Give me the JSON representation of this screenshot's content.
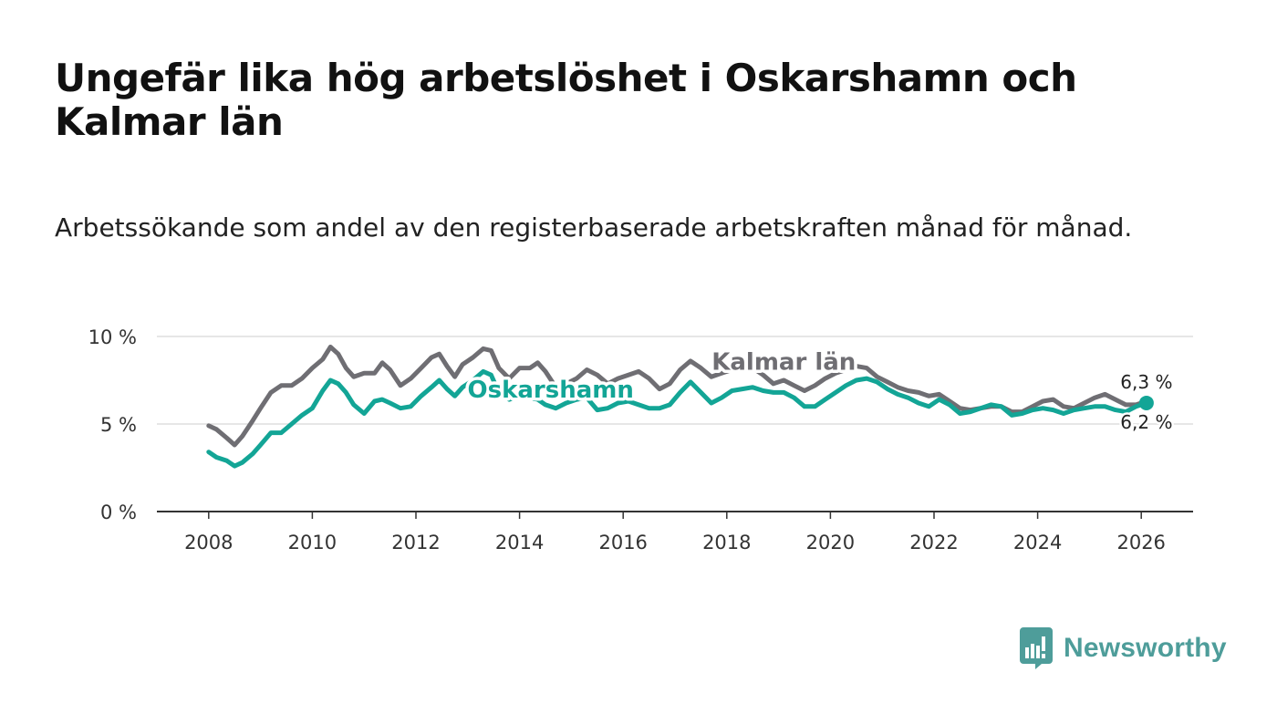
{
  "title": "Ungefär lika hög arbetslöshet i Oskarshamn och Kalmar län",
  "subtitle": "Arbetssökande som andel av den registerbaserade arbetskraften månad för månad.",
  "brand": {
    "name": "Newsworthy",
    "color": "#4e9d9a"
  },
  "chart_data": {
    "type": "line",
    "title": "Ungefär lika hög arbetslöshet i Oskarshamn och Kalmar län",
    "xlabel": "",
    "ylabel": "",
    "xlim": [
      2007.0,
      2027.0
    ],
    "ylim": [
      0,
      10
    ],
    "x_ticks": [
      2008,
      2010,
      2012,
      2014,
      2016,
      2018,
      2020,
      2022,
      2024,
      2026
    ],
    "x_tick_labels": [
      "2008",
      "2010",
      "2012",
      "2014",
      "2016",
      "2018",
      "2020",
      "2022",
      "2024",
      "2026"
    ],
    "y_ticks": [
      0,
      5,
      10
    ],
    "y_tick_labels": [
      "0 %",
      "5 %",
      "10 %"
    ],
    "grid": true,
    "series": [
      {
        "name": "Kalmar län",
        "color": "#6f6e73",
        "end_label": "6,3 %",
        "points": [
          [
            2008.0,
            4.9
          ],
          [
            2008.15,
            4.7
          ],
          [
            2008.35,
            4.2
          ],
          [
            2008.5,
            3.8
          ],
          [
            2008.65,
            4.3
          ],
          [
            2008.85,
            5.2
          ],
          [
            2009.0,
            5.9
          ],
          [
            2009.2,
            6.8
          ],
          [
            2009.4,
            7.2
          ],
          [
            2009.6,
            7.2
          ],
          [
            2009.8,
            7.6
          ],
          [
            2010.0,
            8.2
          ],
          [
            2010.2,
            8.7
          ],
          [
            2010.35,
            9.4
          ],
          [
            2010.5,
            9.0
          ],
          [
            2010.65,
            8.2
          ],
          [
            2010.8,
            7.7
          ],
          [
            2011.0,
            7.9
          ],
          [
            2011.2,
            7.9
          ],
          [
            2011.35,
            8.5
          ],
          [
            2011.5,
            8.1
          ],
          [
            2011.7,
            7.2
          ],
          [
            2011.9,
            7.6
          ],
          [
            2012.1,
            8.2
          ],
          [
            2012.3,
            8.8
          ],
          [
            2012.45,
            9.0
          ],
          [
            2012.6,
            8.3
          ],
          [
            2012.75,
            7.7
          ],
          [
            2012.9,
            8.4
          ],
          [
            2013.1,
            8.8
          ],
          [
            2013.3,
            9.3
          ],
          [
            2013.45,
            9.2
          ],
          [
            2013.6,
            8.2
          ],
          [
            2013.8,
            7.6
          ],
          [
            2014.0,
            8.2
          ],
          [
            2014.2,
            8.2
          ],
          [
            2014.35,
            8.5
          ],
          [
            2014.5,
            8.0
          ],
          [
            2014.7,
            7.1
          ],
          [
            2014.9,
            7.3
          ],
          [
            2015.1,
            7.6
          ],
          [
            2015.3,
            8.1
          ],
          [
            2015.5,
            7.8
          ],
          [
            2015.7,
            7.3
          ],
          [
            2015.9,
            7.6
          ],
          [
            2016.1,
            7.8
          ],
          [
            2016.3,
            8.0
          ],
          [
            2016.5,
            7.6
          ],
          [
            2016.7,
            7.0
          ],
          [
            2016.9,
            7.3
          ],
          [
            2017.1,
            8.1
          ],
          [
            2017.3,
            8.6
          ],
          [
            2017.5,
            8.2
          ],
          [
            2017.7,
            7.7
          ],
          [
            2017.9,
            7.9
          ],
          [
            2018.1,
            8.1
          ],
          [
            2018.3,
            8.3
          ],
          [
            2018.5,
            8.2
          ],
          [
            2018.7,
            7.8
          ],
          [
            2018.9,
            7.3
          ],
          [
            2019.1,
            7.5
          ],
          [
            2019.3,
            7.2
          ],
          [
            2019.5,
            6.9
          ],
          [
            2019.7,
            7.2
          ],
          [
            2019.9,
            7.6
          ],
          [
            2020.1,
            7.9
          ],
          [
            2020.3,
            8.1
          ],
          [
            2020.5,
            8.3
          ],
          [
            2020.7,
            8.2
          ],
          [
            2020.9,
            7.7
          ],
          [
            2021.1,
            7.4
          ],
          [
            2021.3,
            7.1
          ],
          [
            2021.5,
            6.9
          ],
          [
            2021.7,
            6.8
          ],
          [
            2021.9,
            6.6
          ],
          [
            2022.1,
            6.7
          ],
          [
            2022.3,
            6.3
          ],
          [
            2022.5,
            5.9
          ],
          [
            2022.7,
            5.8
          ],
          [
            2022.9,
            5.9
          ],
          [
            2023.1,
            6.0
          ],
          [
            2023.3,
            6.0
          ],
          [
            2023.5,
            5.7
          ],
          [
            2023.7,
            5.7
          ],
          [
            2023.9,
            6.0
          ],
          [
            2024.1,
            6.3
          ],
          [
            2024.3,
            6.4
          ],
          [
            2024.5,
            6.0
          ],
          [
            2024.7,
            5.9
          ],
          [
            2024.9,
            6.2
          ],
          [
            2025.1,
            6.5
          ],
          [
            2025.3,
            6.7
          ],
          [
            2025.5,
            6.4
          ],
          [
            2025.7,
            6.1
          ],
          [
            2025.9,
            6.1
          ],
          [
            2026.1,
            6.3
          ]
        ]
      },
      {
        "name": "Oskarshamn",
        "color": "#13a596",
        "end_label": "6,2 %",
        "points": [
          [
            2008.0,
            3.4
          ],
          [
            2008.15,
            3.1
          ],
          [
            2008.35,
            2.9
          ],
          [
            2008.5,
            2.6
          ],
          [
            2008.65,
            2.8
          ],
          [
            2008.85,
            3.3
          ],
          [
            2009.0,
            3.8
          ],
          [
            2009.2,
            4.5
          ],
          [
            2009.4,
            4.5
          ],
          [
            2009.6,
            5.0
          ],
          [
            2009.8,
            5.5
          ],
          [
            2010.0,
            5.9
          ],
          [
            2010.2,
            6.9
          ],
          [
            2010.35,
            7.5
          ],
          [
            2010.5,
            7.3
          ],
          [
            2010.65,
            6.8
          ],
          [
            2010.8,
            6.1
          ],
          [
            2011.0,
            5.6
          ],
          [
            2011.2,
            6.3
          ],
          [
            2011.35,
            6.4
          ],
          [
            2011.5,
            6.2
          ],
          [
            2011.7,
            5.9
          ],
          [
            2011.9,
            6.0
          ],
          [
            2012.1,
            6.6
          ],
          [
            2012.3,
            7.1
          ],
          [
            2012.45,
            7.5
          ],
          [
            2012.6,
            7.0
          ],
          [
            2012.75,
            6.6
          ],
          [
            2012.9,
            7.1
          ],
          [
            2013.1,
            7.5
          ],
          [
            2013.3,
            8.0
          ],
          [
            2013.45,
            7.8
          ],
          [
            2013.6,
            6.8
          ],
          [
            2013.8,
            6.4
          ],
          [
            2014.0,
            6.6
          ],
          [
            2014.2,
            6.5
          ],
          [
            2014.35,
            6.4
          ],
          [
            2014.5,
            6.1
          ],
          [
            2014.7,
            5.9
          ],
          [
            2014.9,
            6.2
          ],
          [
            2015.1,
            6.4
          ],
          [
            2015.3,
            6.5
          ],
          [
            2015.5,
            5.8
          ],
          [
            2015.7,
            5.9
          ],
          [
            2015.9,
            6.2
          ],
          [
            2016.1,
            6.3
          ],
          [
            2016.3,
            6.1
          ],
          [
            2016.5,
            5.9
          ],
          [
            2016.7,
            5.9
          ],
          [
            2016.9,
            6.1
          ],
          [
            2017.1,
            6.8
          ],
          [
            2017.3,
            7.4
          ],
          [
            2017.5,
            6.8
          ],
          [
            2017.7,
            6.2
          ],
          [
            2017.9,
            6.5
          ],
          [
            2018.1,
            6.9
          ],
          [
            2018.3,
            7.0
          ],
          [
            2018.5,
            7.1
          ],
          [
            2018.7,
            6.9
          ],
          [
            2018.9,
            6.8
          ],
          [
            2019.1,
            6.8
          ],
          [
            2019.3,
            6.5
          ],
          [
            2019.5,
            6.0
          ],
          [
            2019.7,
            6.0
          ],
          [
            2019.9,
            6.4
          ],
          [
            2020.1,
            6.8
          ],
          [
            2020.3,
            7.2
          ],
          [
            2020.5,
            7.5
          ],
          [
            2020.7,
            7.6
          ],
          [
            2020.9,
            7.4
          ],
          [
            2021.1,
            7.0
          ],
          [
            2021.3,
            6.7
          ],
          [
            2021.5,
            6.5
          ],
          [
            2021.7,
            6.2
          ],
          [
            2021.9,
            6.0
          ],
          [
            2022.1,
            6.4
          ],
          [
            2022.3,
            6.1
          ],
          [
            2022.5,
            5.6
          ],
          [
            2022.7,
            5.7
          ],
          [
            2022.9,
            5.9
          ],
          [
            2023.1,
            6.1
          ],
          [
            2023.3,
            6.0
          ],
          [
            2023.5,
            5.5
          ],
          [
            2023.7,
            5.6
          ],
          [
            2023.9,
            5.8
          ],
          [
            2024.1,
            5.9
          ],
          [
            2024.3,
            5.8
          ],
          [
            2024.5,
            5.6
          ],
          [
            2024.7,
            5.8
          ],
          [
            2024.9,
            5.9
          ],
          [
            2025.1,
            6.0
          ],
          [
            2025.3,
            6.0
          ],
          [
            2025.5,
            5.8
          ],
          [
            2025.7,
            5.7
          ],
          [
            2025.9,
            6.0
          ],
          [
            2026.1,
            6.2
          ]
        ]
      }
    ],
    "annotations": [
      {
        "series": "Kalmar län",
        "text": "Kalmar län",
        "x": 2019.1,
        "y": 8.1
      },
      {
        "series": "Oskarshamn",
        "text": "Oskarshamn",
        "x": 2014.6,
        "y": 6.5
      }
    ]
  }
}
